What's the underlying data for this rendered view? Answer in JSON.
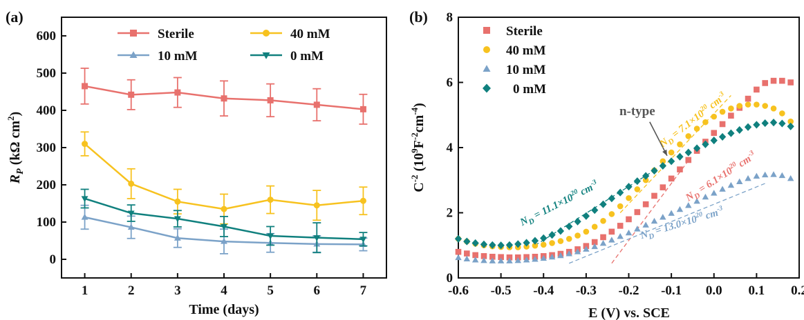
{
  "chart_data": [
    {
      "type": "line",
      "panel_label": "(a)",
      "xlabel": "Time (days)",
      "ylabel": {
        "main": "R",
        "sub": "P",
        "unit": " (kΩ cm",
        "sup": "2",
        "close": ")"
      },
      "x": [
        1,
        2,
        3,
        4,
        5,
        6,
        7
      ],
      "xlim": [
        0.5,
        7.5
      ],
      "ylim": [
        -50,
        650
      ],
      "xticks": [
        1,
        2,
        3,
        4,
        5,
        6,
        7
      ],
      "yticks": [
        0,
        100,
        200,
        300,
        400,
        500,
        600
      ],
      "legend_position": "top",
      "series": [
        {
          "name": "Sterile",
          "color": "#e8716d",
          "marker": "square",
          "values": [
            465,
            442,
            448,
            432,
            427,
            415,
            403
          ],
          "errors": [
            48,
            40,
            40,
            47,
            44,
            43,
            40
          ]
        },
        {
          "name": "40 mM",
          "color": "#f7c21f",
          "marker": "circle",
          "values": [
            310,
            203,
            155,
            135,
            160,
            145,
            157
          ],
          "errors": [
            32,
            40,
            33,
            40,
            37,
            40,
            37
          ]
        },
        {
          "name": "10 mM",
          "color": "#7ba2c8",
          "marker": "triangle-up",
          "values": [
            113,
            86,
            57,
            48,
            44,
            41,
            40
          ],
          "errors": [
            32,
            30,
            25,
            33,
            25,
            22,
            17
          ]
        },
        {
          "name": "0 mM",
          "color": "#10807e",
          "marker": "triangle-down",
          "values": [
            163,
            124,
            109,
            88,
            63,
            58,
            54
          ],
          "errors": [
            25,
            22,
            22,
            27,
            25,
            40,
            18
          ]
        }
      ]
    },
    {
      "type": "scatter",
      "panel_label": "(b)",
      "xlabel": "E (V) vs. SCE",
      "ylabel": {
        "main": "C",
        "sup1": "-2",
        "unit": " (10",
        "sup2": "9",
        "unit2": "F",
        "sup3": "-2",
        "unit3": "cm",
        "sup4": "-4",
        "close": ")"
      },
      "xlim": [
        -0.6,
        0.2
      ],
      "ylim": [
        0,
        8
      ],
      "xticks": [
        -0.6,
        -0.5,
        -0.4,
        -0.3,
        -0.2,
        -0.1,
        0.0,
        0.1,
        0.2
      ],
      "xtick_labels": [
        "-0.6",
        "-0.5",
        "-0.4",
        "-0.3",
        "-0.2",
        "-0.1",
        "0.0",
        "0.1",
        "0.2"
      ],
      "yticks": [
        0,
        2,
        4,
        6,
        8
      ],
      "legend_position": "top-left",
      "series": [
        {
          "name": "Sterile",
          "color": "#e8716d",
          "marker": "square",
          "x": [
            -0.6,
            -0.58,
            -0.56,
            -0.54,
            -0.52,
            -0.5,
            -0.48,
            -0.46,
            -0.44,
            -0.42,
            -0.4,
            -0.38,
            -0.36,
            -0.34,
            -0.32,
            -0.3,
            -0.28,
            -0.26,
            -0.24,
            -0.22,
            -0.2,
            -0.18,
            -0.16,
            -0.14,
            -0.12,
            -0.1,
            -0.08,
            -0.06,
            -0.04,
            -0.02,
            0.0,
            0.02,
            0.04,
            0.06,
            0.08,
            0.1,
            0.12,
            0.14,
            0.16,
            0.18
          ],
          "y": [
            0.8,
            0.75,
            0.7,
            0.67,
            0.65,
            0.64,
            0.63,
            0.63,
            0.64,
            0.65,
            0.67,
            0.7,
            0.74,
            0.8,
            0.88,
            0.98,
            1.1,
            1.25,
            1.42,
            1.6,
            1.8,
            2.02,
            2.26,
            2.52,
            2.78,
            3.05,
            3.33,
            3.62,
            3.9,
            4.18,
            4.45,
            4.72,
            4.98,
            5.22,
            5.5,
            5.78,
            5.98,
            6.05,
            6.05,
            6.0
          ]
        },
        {
          "name": "40 mM",
          "color": "#f7c21f",
          "marker": "circle",
          "x": [
            -0.6,
            -0.58,
            -0.56,
            -0.54,
            -0.52,
            -0.5,
            -0.48,
            -0.46,
            -0.44,
            -0.42,
            -0.4,
            -0.38,
            -0.36,
            -0.34,
            -0.32,
            -0.3,
            -0.28,
            -0.26,
            -0.24,
            -0.22,
            -0.2,
            -0.18,
            -0.16,
            -0.14,
            -0.12,
            -0.1,
            -0.08,
            -0.06,
            -0.04,
            -0.02,
            0.0,
            0.02,
            0.04,
            0.06,
            0.08,
            0.1,
            0.12,
            0.14,
            0.16,
            0.18
          ],
          "y": [
            1.2,
            1.12,
            1.05,
            1.0,
            0.97,
            0.95,
            0.94,
            0.94,
            0.96,
            0.99,
            1.02,
            1.07,
            1.13,
            1.2,
            1.3,
            1.42,
            1.57,
            1.75,
            1.96,
            2.2,
            2.45,
            2.72,
            3.0,
            3.3,
            3.58,
            3.85,
            4.1,
            4.35,
            4.58,
            4.78,
            4.95,
            5.1,
            5.2,
            5.28,
            5.32,
            5.32,
            5.28,
            5.2,
            5.05,
            4.8
          ]
        },
        {
          "name": "10 mM",
          "color": "#7ba2c8",
          "marker": "triangle-up",
          "x": [
            -0.6,
            -0.58,
            -0.56,
            -0.54,
            -0.52,
            -0.5,
            -0.48,
            -0.46,
            -0.44,
            -0.42,
            -0.4,
            -0.38,
            -0.36,
            -0.34,
            -0.32,
            -0.3,
            -0.28,
            -0.26,
            -0.24,
            -0.22,
            -0.2,
            -0.18,
            -0.16,
            -0.14,
            -0.12,
            -0.1,
            -0.08,
            -0.06,
            -0.04,
            -0.02,
            0.0,
            0.02,
            0.04,
            0.06,
            0.08,
            0.1,
            0.12,
            0.14,
            0.16,
            0.18
          ],
          "y": [
            0.62,
            0.58,
            0.55,
            0.53,
            0.52,
            0.52,
            0.52,
            0.53,
            0.55,
            0.57,
            0.6,
            0.64,
            0.68,
            0.74,
            0.8,
            0.88,
            0.96,
            1.06,
            1.16,
            1.27,
            1.38,
            1.5,
            1.62,
            1.74,
            1.86,
            1.98,
            2.1,
            2.22,
            2.35,
            2.48,
            2.6,
            2.72,
            2.84,
            2.95,
            3.05,
            3.12,
            3.16,
            3.17,
            3.14,
            3.05
          ]
        },
        {
          "name": "0 mM",
          "color": "#10807e",
          "marker": "diamond",
          "x": [
            -0.6,
            -0.58,
            -0.56,
            -0.54,
            -0.52,
            -0.5,
            -0.48,
            -0.46,
            -0.44,
            -0.42,
            -0.4,
            -0.38,
            -0.36,
            -0.34,
            -0.32,
            -0.3,
            -0.28,
            -0.26,
            -0.24,
            -0.22,
            -0.2,
            -0.18,
            -0.16,
            -0.14,
            -0.12,
            -0.1,
            -0.08,
            -0.06,
            -0.04,
            -0.02,
            0.0,
            0.02,
            0.04,
            0.06,
            0.08,
            0.1,
            0.12,
            0.14,
            0.16,
            0.18
          ],
          "y": [
            1.2,
            1.12,
            1.07,
            1.03,
            1.01,
            1.0,
            1.01,
            1.04,
            1.08,
            1.14,
            1.22,
            1.32,
            1.44,
            1.58,
            1.73,
            1.9,
            2.08,
            2.26,
            2.44,
            2.62,
            2.8,
            2.97,
            3.13,
            3.29,
            3.44,
            3.58,
            3.72,
            3.85,
            3.98,
            4.1,
            4.22,
            4.33,
            4.44,
            4.54,
            4.63,
            4.7,
            4.75,
            4.77,
            4.74,
            4.65
          ]
        }
      ],
      "fit_lines": [
        {
          "series": "Sterile",
          "x": [
            -0.24,
            -0.06
          ],
          "y": [
            0.45,
            3.6
          ],
          "color": "#e8716d"
        },
        {
          "series": "40 mM",
          "x": [
            -0.22,
            0.04
          ],
          "y": [
            2.0,
            5.6
          ],
          "color": "#f7c21f"
        },
        {
          "series": "10 mM",
          "x": [
            -0.34,
            0.12
          ],
          "y": [
            0.45,
            2.9
          ],
          "color": "#7ba2c8"
        },
        {
          "series": "0 mM",
          "x": [
            -0.42,
            -0.14
          ],
          "y": [
            1.0,
            3.3
          ],
          "color": "#10807e"
        }
      ],
      "annotations": [
        {
          "text": "n-type",
          "x": -0.18,
          "y": 5.0,
          "color": "#555555",
          "arrow_to": [
            -0.11,
            3.75
          ]
        },
        {
          "prefix": "N",
          "sub": "D",
          "value": " = 7.1×10",
          "sup": "20",
          "unit": " cm",
          "usup": "-3",
          "color": "#f7c21f",
          "x": -0.12,
          "y": 4.0,
          "angle": -38
        },
        {
          "prefix": "N",
          "sub": "D",
          "value": " = 6.1×10",
          "sup": "20",
          "unit": " cm",
          "usup": "-3",
          "color": "#e8716d",
          "x": -0.06,
          "y": 2.35,
          "angle": -33
        },
        {
          "prefix": "N",
          "sub": "D",
          "value": " = 11.1×10",
          "sup": "20",
          "unit": " cm",
          "usup": "-3",
          "color": "#10807e",
          "x": -0.45,
          "y": 1.6,
          "angle": -27
        },
        {
          "prefix": "N",
          "sub": "D",
          "value": " = 13.0×10",
          "sup": "20",
          "unit": " cm",
          "usup": "-3",
          "color": "#7ba2c8",
          "x": -0.17,
          "y": 1.2,
          "angle": -17
        }
      ]
    }
  ]
}
